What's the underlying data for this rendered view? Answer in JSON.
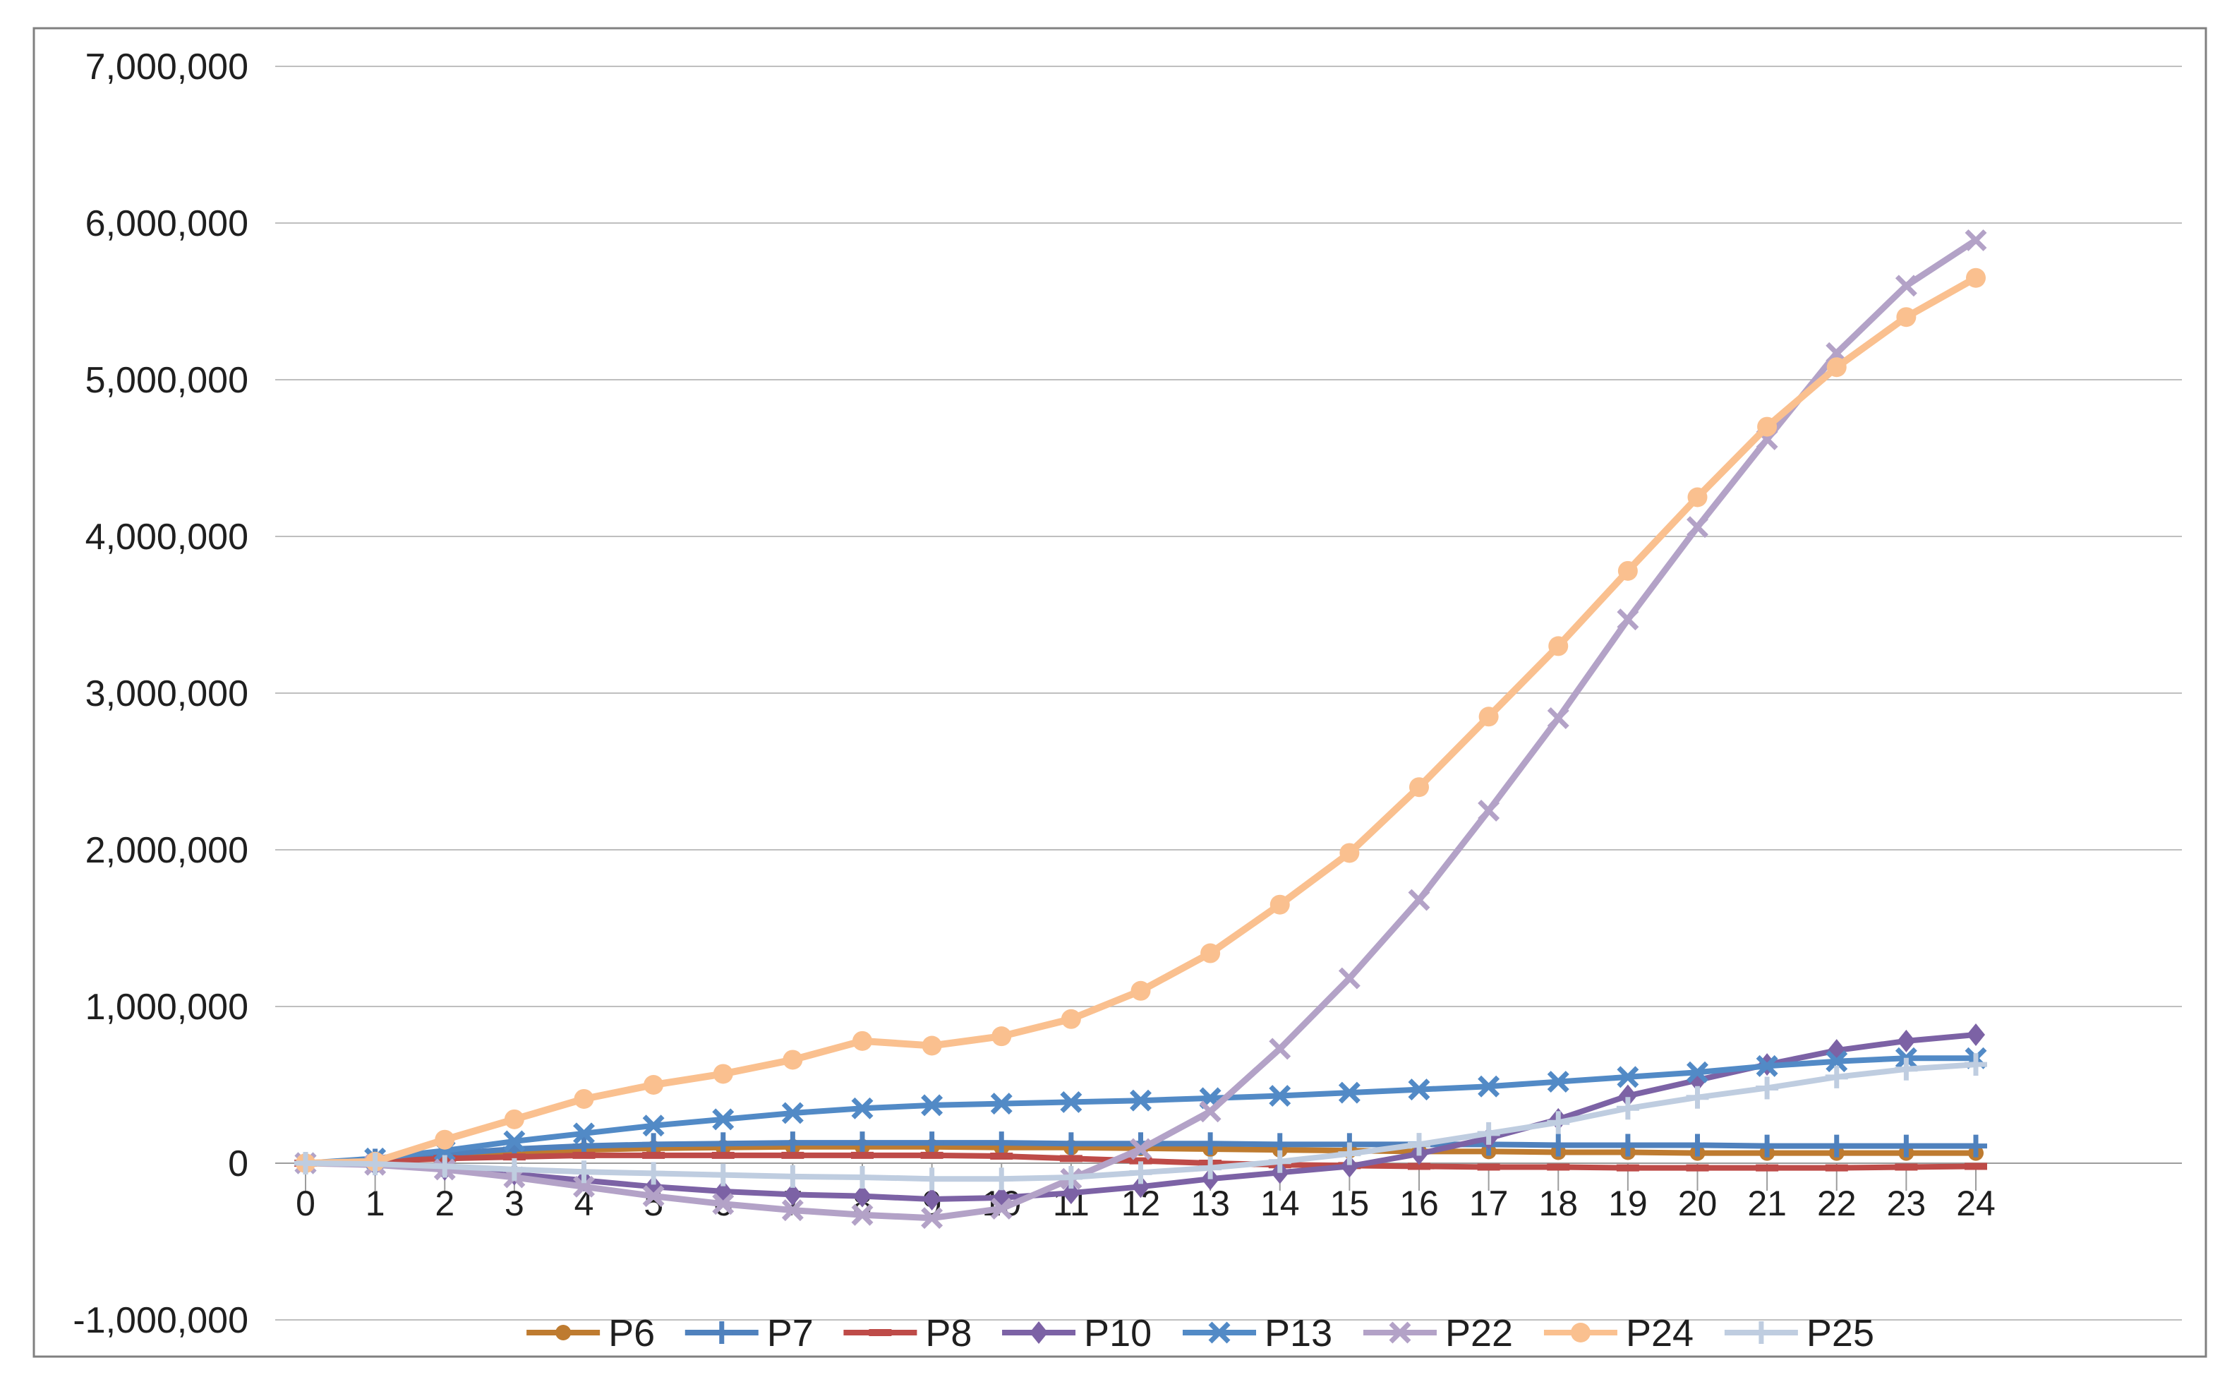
{
  "page": {
    "background": "#ffffff",
    "chart_border_color": "#808080",
    "gridline_color": "#bfbfbf",
    "axis_color": "#9c9c9c",
    "label_color": "#1f1f1f"
  },
  "chart_data": {
    "type": "line",
    "title": "",
    "grid": "horizontal",
    "legend_position": "bottom",
    "x": [
      0,
      1,
      2,
      3,
      4,
      5,
      6,
      7,
      8,
      9,
      10,
      11,
      12,
      13,
      14,
      15,
      16,
      17,
      18,
      19,
      20,
      21,
      22,
      23,
      24
    ],
    "x_axis": {
      "tick_labels": [
        "0",
        "1",
        "2",
        "3",
        "4",
        "5",
        "6",
        "7",
        "8",
        "9",
        "10",
        "11",
        "12",
        "13",
        "14",
        "15",
        "16",
        "17",
        "18",
        "19",
        "20",
        "21",
        "22",
        "23",
        "24"
      ]
    },
    "y_axis": {
      "min": -1000000,
      "max": 7000000,
      "step": 1000000,
      "tick_labels": [
        "-1,000,000",
        "0",
        "1,000,000",
        "2,000,000",
        "3,000,000",
        "4,000,000",
        "5,000,000",
        "6,000,000",
        "7,000,000"
      ]
    },
    "series": [
      {
        "name": "P6",
        "color": "#BE7B30",
        "marker": "circle",
        "values": [
          0,
          20000,
          50000,
          70000,
          85000,
          95000,
          100000,
          105000,
          105000,
          105000,
          100000,
          100000,
          95000,
          90000,
          85000,
          80000,
          75000,
          75000,
          70000,
          70000,
          65000,
          65000,
          65000,
          65000,
          65000
        ]
      },
      {
        "name": "P7",
        "color": "#4F81BD",
        "marker": "plus",
        "values": [
          0,
          20000,
          60000,
          90000,
          110000,
          120000,
          125000,
          130000,
          130000,
          130000,
          130000,
          125000,
          125000,
          125000,
          120000,
          120000,
          120000,
          120000,
          115000,
          115000,
          115000,
          110000,
          110000,
          110000,
          110000
        ]
      },
      {
        "name": "P8",
        "color": "#BE4B48",
        "marker": "dash",
        "values": [
          0,
          10000,
          30000,
          40000,
          50000,
          50000,
          50000,
          50000,
          50000,
          50000,
          45000,
          30000,
          15000,
          0,
          -10000,
          -15000,
          -20000,
          -25000,
          -25000,
          -30000,
          -30000,
          -30000,
          -30000,
          -25000,
          -20000
        ]
      },
      {
        "name": "P10",
        "color": "#7C62A5",
        "marker": "diamond",
        "values": [
          0,
          -10000,
          -40000,
          -70000,
          -110000,
          -150000,
          -180000,
          -200000,
          -210000,
          -230000,
          -220000,
          -190000,
          -150000,
          -100000,
          -60000,
          -20000,
          60000,
          160000,
          280000,
          430000,
          530000,
          630000,
          720000,
          780000,
          820000
        ]
      },
      {
        "name": "P13",
        "color": "#528AC6",
        "marker": "x",
        "values": [
          0,
          30000,
          80000,
          140000,
          190000,
          240000,
          280000,
          320000,
          350000,
          370000,
          380000,
          390000,
          400000,
          415000,
          430000,
          450000,
          470000,
          490000,
          520000,
          550000,
          580000,
          620000,
          650000,
          670000,
          670000
        ]
      },
      {
        "name": "P22",
        "color": "#B3A2C7",
        "marker": "x",
        "values": [
          0,
          -10000,
          -40000,
          -90000,
          -150000,
          -210000,
          -260000,
          -300000,
          -330000,
          -350000,
          -290000,
          -100000,
          90000,
          330000,
          730000,
          1180000,
          1680000,
          2250000,
          2840000,
          3470000,
          4060000,
          4620000,
          5170000,
          5600000,
          5890000
        ]
      },
      {
        "name": "P24",
        "color": "#FAC08F",
        "marker": "circle",
        "values": [
          0,
          10000,
          150000,
          280000,
          410000,
          500000,
          570000,
          660000,
          780000,
          750000,
          810000,
          920000,
          1100000,
          1340000,
          1650000,
          1980000,
          2400000,
          2850000,
          3300000,
          3780000,
          4250000,
          4700000,
          5080000,
          5400000,
          5650000
        ]
      },
      {
        "name": "P25",
        "color": "#BFCDE0",
        "marker": "plus",
        "values": [
          0,
          -5000,
          -20000,
          -40000,
          -55000,
          -65000,
          -75000,
          -85000,
          -90000,
          -100000,
          -100000,
          -90000,
          -60000,
          -30000,
          10000,
          60000,
          120000,
          190000,
          260000,
          350000,
          420000,
          480000,
          550000,
          600000,
          630000
        ]
      }
    ]
  }
}
